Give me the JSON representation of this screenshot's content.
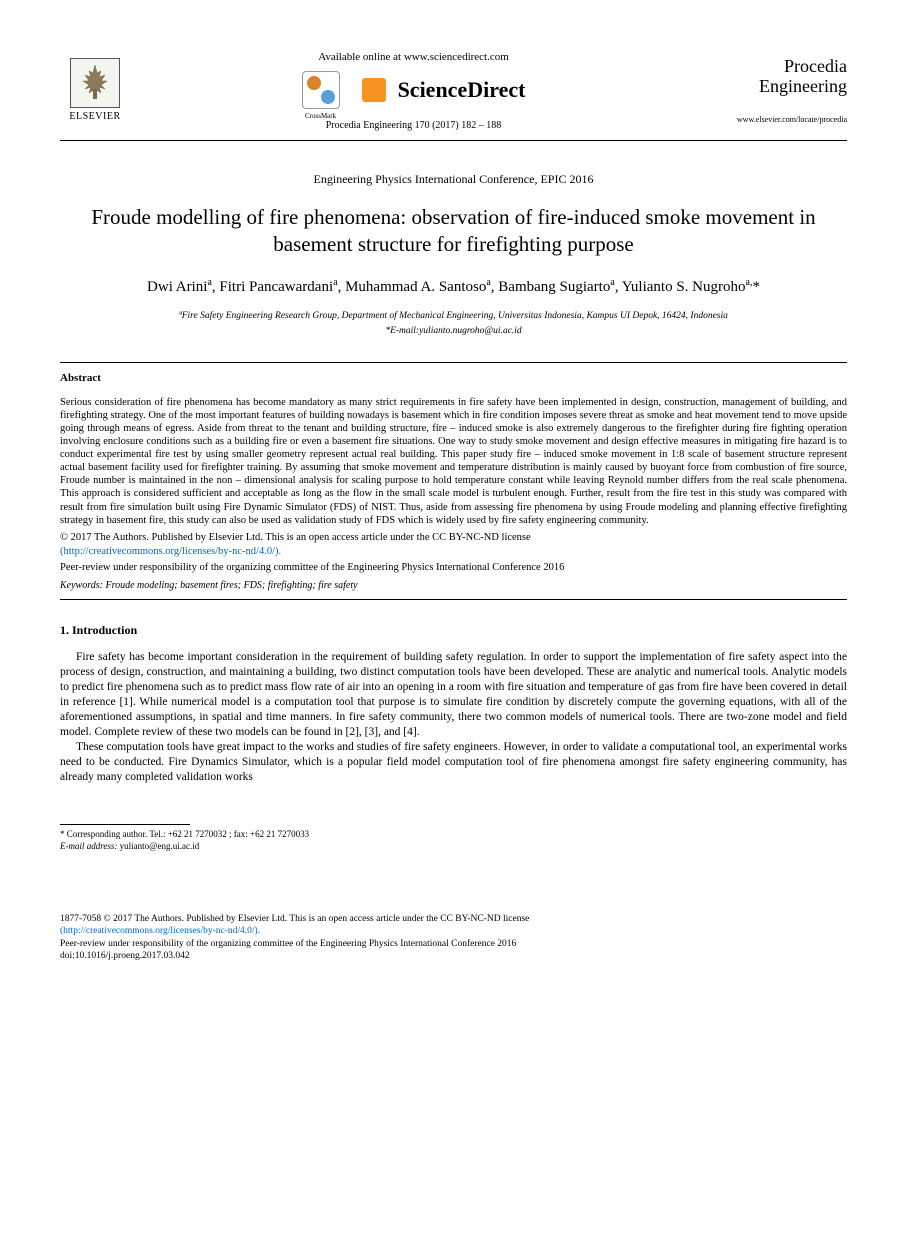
{
  "header": {
    "elsevier_label": "ELSEVIER",
    "available_online": "Available online at www.sciencedirect.com",
    "crossmark_label": "CrossMark",
    "sciencedirect_label": "ScienceDirect",
    "journal_reference": "Procedia Engineering 170 (2017) 182 – 188",
    "procedia_line1": "Procedia",
    "procedia_line2": "Engineering",
    "journal_url": "www.elsevier.com/locate/procedia"
  },
  "conference": "Engineering Physics International Conference, EPIC 2016",
  "title": "Froude modelling of fire phenomena: observation of fire-induced smoke movement in basement structure for firefighting purpose",
  "authors_html": "Dwi Arini<sup>a</sup>, Fitri Pancawardani<sup>a</sup>, Muhammad A. Santoso<sup>a</sup>, Bambang Sugiarto<sup>a</sup>, Yulianto S. Nugroho<sup>a,</sup>*",
  "affiliation": "ªFire Safety Engineering Research Group, Department of Mechanical Engineering, Universitas Indonesia, Kampus UI Depok, 16424, Indonesia",
  "corr_email": "*E-mail:yulianto.nugroho@ui.ac.id",
  "abstract": {
    "heading": "Abstract",
    "body": "Serious consideration of fire phenomena has become mandatory as many strict requirements in fire safety have been implemented in design, construction, management of building, and firefighting strategy. One of the most important features of building nowadays is basement which in fire condition imposes severe threat as smoke and heat movement tend to move upside going through means of egress. Aside from threat to the tenant and building structure, fire – induced smoke is also extremely dangerous to the firefighter during fire fighting operation involving enclosure conditions such as a building fire or even a basement fire situations. One way to study smoke movement and design effective measures in mitigating fire hazard is to conduct experimental fire test by using smaller geometry represent actual real building. This paper study fire – induced smoke movement in 1:8 scale of basement structure represent actual basement facility used for firefighter training. By assuming that smoke movement and temperature distribution is mainly caused by buoyant force from combustion of fire source, Froude number is maintained in the non – dimensional analysis for scaling purpose to hold temperature constant while leaving Reynold number differs from the real scale phenomena. This approach is considered sufficient and acceptable as long as the flow in the small scale model is turbulent enough. Further, result from the fire test in this study was compared with result from fire simulation built using Fire Dynamic Simulator (FDS) of NIST. Thus, aside from assessing fire phenomena by using Froude modeling and planning effective firefighting strategy in basement fire, this study can also be used as validation study of FDS which is widely used by fire safety engineering community.",
    "copyright": "© 2017 The Authors. Published by Elsevier Ltd. This is an open access article under the CC BY-NC-ND license",
    "license_url": "(http://creativecommons.org/licenses/by-nc-nd/4.0/).",
    "peer_review": "Peer-review under responsibility of the organizing committee of the Engineering Physics International Conference 2016",
    "keywords_label": "Keywords:",
    "keywords": " Froude modeling; basement fires; FDS; firefighting; fire safety"
  },
  "intro": {
    "heading": "1. Introduction",
    "para1": "Fire safety has become important consideration in the requirement of building safety regulation. In order to support the implementation of fire safety aspect into the process of design, construction, and maintaining a building, two distinct computation tools have been developed. These are analytic and numerical tools. Analytic models to predict fire phenomena such as to predict mass flow rate of air into an opening in a room with fire situation and temperature of gas from fire have been covered in detail in reference [1]. While numerical model is a computation tool that purpose is to simulate fire condition by discretely compute the governing equations, with all of the aforementioned assumptions, in spatial and time manners. In fire safety community, there two common models of numerical tools. There are two-zone model and field model. Complete review of these two models can be found in [2], [3], and [4].",
    "para2": "These computation tools have great impact to the works and studies of fire safety engineers. However, in order to validate a computational tool, an experimental works need to be conducted. Fire Dynamics Simulator, which is a popular field model computation tool of fire phenomena amongst fire safety engineering community, has already many completed validation works"
  },
  "footnote": {
    "corr": "* Corresponding author. Tel.: +62 21 7270032 ; fax: +62 21 7270033",
    "email_label": "E-mail address:",
    "email": " yulianto@eng.ui.ac.id"
  },
  "footer": {
    "issn_line": "1877-7058 © 2017 The Authors. Published by Elsevier Ltd. This is an open access article under the CC BY-NC-ND license",
    "license_url": "(http://creativecommons.org/licenses/by-nc-nd/4.0/).",
    "peer_review": "Peer-review under responsibility of the organizing committee of the Engineering Physics International Conference 2016",
    "doi": "doi:10.1016/j.proeng.2017.03.042"
  }
}
